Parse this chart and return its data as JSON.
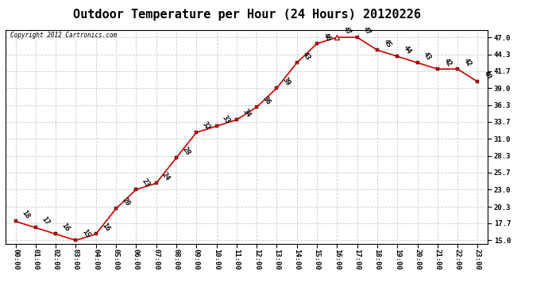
{
  "title": "Outdoor Temperature per Hour (24 Hours) 20120226",
  "copyright_text": "Copyright 2012 Cartronics.com",
  "hours": [
    0,
    1,
    2,
    3,
    4,
    5,
    6,
    7,
    8,
    9,
    10,
    11,
    12,
    13,
    14,
    15,
    16,
    17,
    18,
    19,
    20,
    21,
    22,
    23
  ],
  "x_labels": [
    "00:00",
    "01:00",
    "02:00",
    "03:00",
    "04:00",
    "05:00",
    "06:00",
    "07:00",
    "08:00",
    "09:00",
    "10:00",
    "11:00",
    "12:00",
    "13:00",
    "14:00",
    "15:00",
    "16:00",
    "17:00",
    "18:00",
    "19:00",
    "20:00",
    "21:00",
    "22:00",
    "23:00"
  ],
  "temps": [
    18,
    17,
    16,
    15,
    16,
    20,
    23,
    24,
    28,
    32,
    33,
    34,
    36,
    39,
    43,
    46,
    47,
    47,
    45,
    44,
    43,
    42,
    42,
    40
  ],
  "y_ticks": [
    15.0,
    17.7,
    20.3,
    23.0,
    25.7,
    28.3,
    31.0,
    33.7,
    36.3,
    39.0,
    41.7,
    44.3,
    47.0
  ],
  "ylim_min": 14.5,
  "ylim_max": 48.2,
  "line_color": "#cc0000",
  "bg_color": "#ffffff",
  "grid_color": "#cccccc",
  "title_fontsize": 11,
  "label_fontsize": 6.5,
  "annotation_fontsize": 6.5,
  "peak_hour": 16
}
